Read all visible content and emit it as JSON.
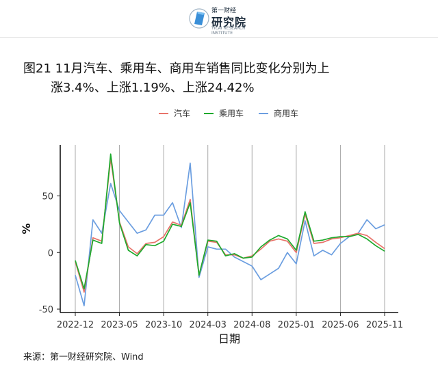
{
  "header": {
    "brand_top": "第一财经",
    "brand_main": "研究院",
    "brand_sub": "YICAI RESEARCH INSTITUTE"
  },
  "title_line1": "图21 11月汽车、乘用车、商用车销售同比变化分别为上",
  "title_line2": "涨3.4%、上涨1.19%、上涨24.42%",
  "source": "来源：第一财经研究院、Wind",
  "colors": {
    "auto": "#e8736a",
    "passenger": "#1eaa2d",
    "commercial": "#6b9ee0"
  },
  "chart_data": {
    "type": "line",
    "title": "图21 11月汽车、乘用车、商用车销售同比变化分别为上涨3.4%、上涨1.19%、上涨24.42%",
    "xlabel": "日期",
    "ylabel": "%",
    "ylim": [
      -53,
      95
    ],
    "yticks": [
      -50,
      0,
      50
    ],
    "grid": "vertical",
    "legend_position": "top",
    "x_tick_labels": [
      "2022-12",
      "2023-05",
      "2023-10",
      "2024-03",
      "2024-08",
      "2025-01",
      "2025-06",
      "2025-11"
    ],
    "x": [
      "2022-12",
      "2023-01",
      "2023-02",
      "2023-03",
      "2023-04",
      "2023-05",
      "2023-06",
      "2023-07",
      "2023-08",
      "2023-09",
      "2023-10",
      "2023-11",
      "2023-12",
      "2024-01",
      "2024-02",
      "2024-03",
      "2024-04",
      "2024-05",
      "2024-06",
      "2024-07",
      "2024-08",
      "2024-09",
      "2024-10",
      "2024-11",
      "2024-12",
      "2025-01",
      "2025-02",
      "2025-03",
      "2025-04",
      "2025-05",
      "2025-06",
      "2025-07",
      "2025-08",
      "2025-09",
      "2025-10",
      "2025-11"
    ],
    "series": [
      {
        "name": "汽车",
        "color": "#e8736a",
        "values": [
          -8,
          -35,
          13,
          10,
          83,
          27,
          5,
          -1,
          8,
          9,
          14,
          27,
          24,
          47,
          -20,
          10,
          9,
          -2,
          -2,
          -5,
          -3,
          3,
          10,
          12,
          10,
          0,
          34,
          8,
          9,
          12,
          13,
          15,
          17,
          15,
          9,
          3.4
        ]
      },
      {
        "name": "乘用车",
        "color": "#1eaa2d",
        "values": [
          -7,
          -32,
          11,
          8,
          87,
          26,
          2,
          -3,
          7,
          6,
          10,
          25,
          23,
          44,
          -20,
          11,
          10,
          -3,
          -1,
          -5,
          -4,
          5,
          11,
          15,
          12,
          2,
          36,
          10,
          11,
          13,
          14,
          14,
          16,
          12,
          6,
          1.19
        ]
      },
      {
        "name": "商用车",
        "color": "#6b9ee0",
        "values": [
          -20,
          -47,
          29,
          17,
          61,
          37,
          27,
          17,
          20,
          33,
          33,
          44,
          22,
          79,
          -22,
          5,
          3,
          3,
          -4,
          -8,
          -12,
          -24,
          -19,
          -14,
          0,
          -10,
          28,
          -3,
          2,
          -2,
          8,
          14,
          17,
          29,
          21,
          24.42
        ]
      }
    ]
  }
}
